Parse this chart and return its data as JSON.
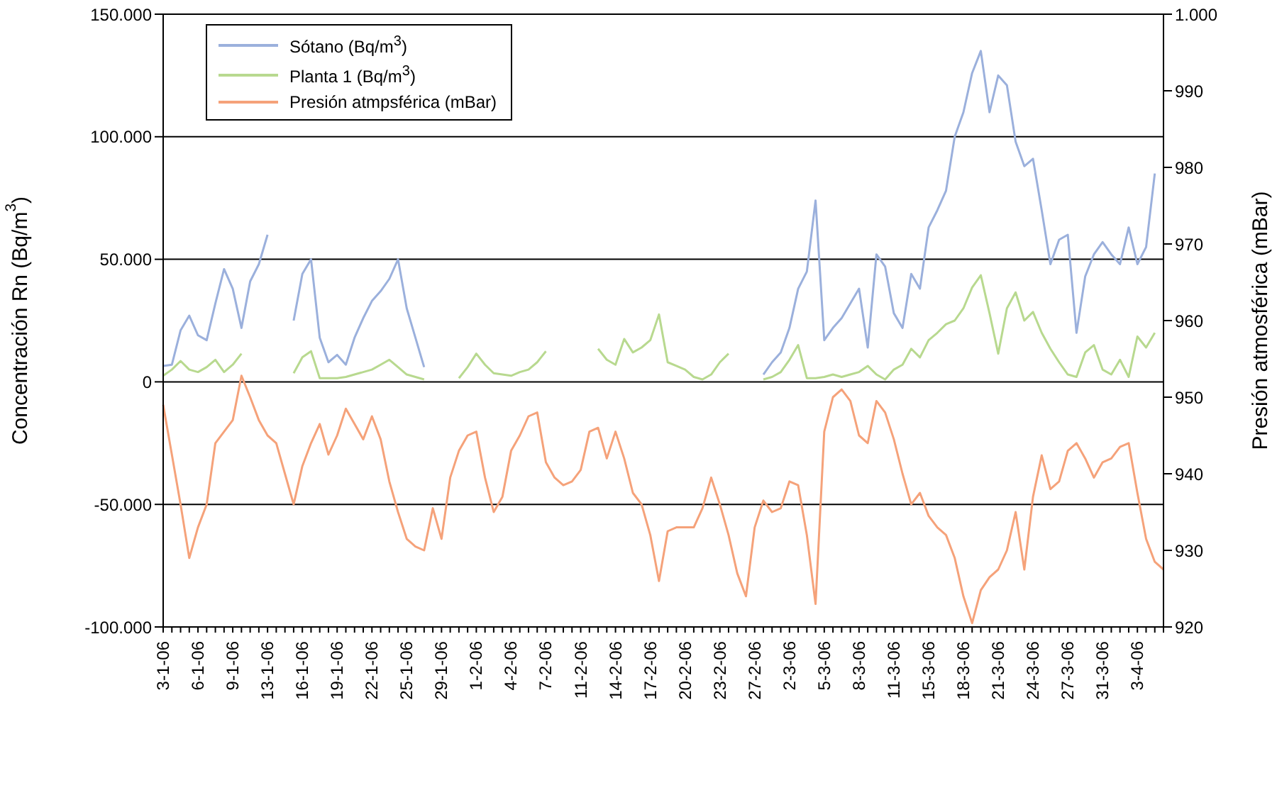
{
  "chart_data": {
    "type": "line",
    "ylabel": "Concentración Rn (Bq/m$^{3}$)",
    "y2label": "Presión atmosférica (mBar)",
    "categories": [
      "3-1-06",
      null,
      null,
      null,
      "6-1-06",
      null,
      null,
      null,
      "9-1-06",
      null,
      null,
      null,
      "13-1-06",
      null,
      null,
      null,
      "16-1-06",
      null,
      null,
      null,
      "19-1-06",
      null,
      null,
      null,
      "22-1-06",
      null,
      null,
      null,
      "25-1-06",
      null,
      null,
      null,
      "29-1-06",
      null,
      null,
      null,
      "1-2-06",
      null,
      null,
      null,
      "4-2-06",
      null,
      null,
      null,
      "7-2-06",
      null,
      null,
      null,
      "11-2-06",
      null,
      null,
      null,
      "14-2-06",
      null,
      null,
      null,
      "17-2-06",
      null,
      null,
      null,
      "20-2-06",
      null,
      null,
      null,
      "23-2-06",
      null,
      null,
      null,
      "27-2-06",
      null,
      null,
      null,
      "2-3-06",
      null,
      null,
      null,
      "5-3-06",
      null,
      null,
      null,
      "8-3-06",
      null,
      null,
      null,
      "11-3-06",
      null,
      null,
      null,
      "15-3-06",
      null,
      null,
      null,
      "18-3-06",
      null,
      null,
      null,
      "21-3-06",
      null,
      null,
      null,
      "24-3-06",
      null,
      null,
      null,
      "27-3-06",
      null,
      null,
      null,
      "31-3-06",
      null,
      null,
      null,
      "3-4-06",
      null,
      null,
      null
    ],
    "series": [
      {
        "name": "Sótano (Bq/m$^{3}$)",
        "color": "#9bb0dc",
        "values": [
          6500,
          7000,
          21000,
          27000,
          19000,
          17000,
          32000,
          46000,
          38000,
          22000,
          41000,
          48000,
          60000,
          null,
          null,
          25000,
          44000,
          50000,
          18000,
          8000,
          11000,
          7000,
          18000,
          26000,
          33000,
          37000,
          42000,
          50000,
          30000,
          18000,
          6000,
          null,
          null,
          null,
          null,
          null,
          null,
          null,
          null,
          null,
          null,
          null,
          null,
          null,
          null,
          null,
          null,
          null,
          null,
          null,
          null,
          null,
          null,
          null,
          null,
          null,
          null,
          null,
          null,
          null,
          null,
          null,
          null,
          null,
          null,
          null,
          null,
          null,
          null,
          3000,
          8000,
          12000,
          22000,
          38000,
          45000,
          74000,
          17000,
          22000,
          26000,
          32000,
          38000,
          14000,
          52000,
          47000,
          28000,
          22000,
          44000,
          38000,
          63000,
          70000,
          78000,
          100000,
          110000,
          126000,
          135000,
          110000,
          125000,
          121000,
          98000,
          88000,
          91000,
          70000,
          48000,
          58000,
          60000,
          20000,
          43000,
          52000,
          57000,
          52000,
          48000,
          63000,
          48000,
          55000,
          85000,
          null
        ]
      },
      {
        "name": "Planta 1 (Bq/m$^{3}$)",
        "color": "#b8d98f",
        "values": [
          2500,
          5000,
          8500,
          5000,
          4000,
          6000,
          9000,
          4000,
          7000,
          11500,
          null,
          null,
          null,
          null,
          null,
          3500,
          10000,
          12500,
          1500,
          1500,
          1500,
          2000,
          3000,
          4000,
          5000,
          7000,
          9000,
          6000,
          3000,
          2000,
          1000,
          null,
          null,
          null,
          1500,
          6000,
          11500,
          7000,
          3500,
          3000,
          2500,
          4000,
          5000,
          8000,
          12500,
          null,
          null,
          null,
          null,
          null,
          13500,
          9000,
          7000,
          17500,
          12000,
          14000,
          17000,
          27500,
          8000,
          6500,
          5000,
          2000,
          1000,
          3000,
          8000,
          11500,
          null,
          null,
          null,
          1000,
          2000,
          4000,
          9000,
          15000,
          1500,
          1500,
          2000,
          3000,
          2000,
          3000,
          4000,
          6500,
          3000,
          1000,
          5000,
          7000,
          13500,
          10000,
          17000,
          20000,
          23500,
          25000,
          30000,
          38500,
          43500,
          28000,
          11500,
          30000,
          36500,
          25000,
          28500,
          20000,
          13500,
          8000,
          3000,
          2000,
          12000,
          15000,
          5000,
          3000,
          9000,
          2000,
          18500,
          14000,
          20000,
          null
        ]
      },
      {
        "name": "Presión atmpsférica (mBar)",
        "color": "#f5a27a",
        "axis": "y2",
        "values": [
          949,
          942.5,
          936,
          929,
          933,
          936,
          944,
          945.5,
          947,
          952.8,
          950,
          947,
          945,
          944,
          940,
          936,
          941,
          944,
          946.5,
          942.5,
          945,
          948.5,
          946.5,
          944.5,
          947.5,
          944.5,
          939,
          935,
          931.5,
          930.5,
          930,
          935.5,
          931.5,
          939.5,
          943,
          945,
          945.5,
          939.5,
          935,
          937,
          943,
          945,
          947.5,
          948,
          941.5,
          939.5,
          938.5,
          939,
          940.5,
          945.5,
          946,
          942,
          945.5,
          942,
          937.5,
          936,
          932,
          926,
          932.5,
          933,
          933,
          933,
          935.5,
          939.5,
          936,
          932,
          927,
          924,
          933,
          936.5,
          935,
          935.5,
          939,
          938.5,
          932,
          923,
          945.5,
          950,
          951,
          949.5,
          945,
          944,
          949.5,
          948,
          944.5,
          940,
          936,
          937.5,
          934.5,
          933,
          932,
          929,
          924,
          920.5,
          924.8,
          926.5,
          927.5,
          930,
          935,
          927.5,
          937,
          942.4,
          938,
          939,
          943,
          944,
          942,
          939.5,
          941.5,
          942,
          943.5,
          944,
          937.5,
          931.5,
          928.5,
          927.5
        ]
      }
    ],
    "ylim": [
      -100000,
      150000
    ],
    "yticks": [
      {
        "value": -100000,
        "label": "-100.000"
      },
      {
        "value": -50000,
        "label": "-50.000"
      },
      0,
      {
        "value": 50000,
        "label": "50.000"
      },
      {
        "value": 100000,
        "label": "100.000"
      },
      {
        "value": 150000,
        "label": "150.000"
      }
    ],
    "y2lim": [
      920,
      1000
    ],
    "y2ticks": [
      920,
      930,
      940,
      950,
      960,
      970,
      980,
      990,
      {
        "value": 1000,
        "label": "1.000"
      }
    ],
    "grid": "y",
    "legend": "top left"
  }
}
